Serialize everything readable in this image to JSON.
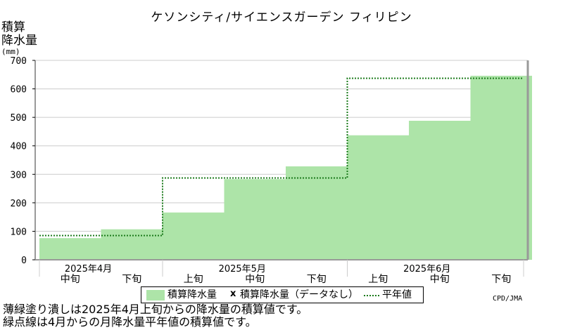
{
  "title": "ケソンシティ/サイエンスガーデン フィリピン",
  "ylabel_lines": [
    "積算",
    "降水量"
  ],
  "unit": "(mm)",
  "credit": "CPD/JMA",
  "legend": {
    "item1": "積算降水量",
    "xmark": "x",
    "item2": "積算降水量（データなし）",
    "item3": "平年値"
  },
  "notes": [
    "薄緑塗り潰しは2025年4月上旬からの降水量の積算値です。",
    "緑点線は4月からの月降水量平年値の積算値です。"
  ],
  "colors": {
    "fill": "#ade4a8",
    "normal_line": "#1a7a1a",
    "grid": "#cccccc",
    "axis": "#999999"
  },
  "chart_data": {
    "type": "area",
    "periods": [
      "中旬",
      "下旬",
      "上旬",
      "中旬",
      "下旬",
      "上旬",
      "中旬",
      "下旬"
    ],
    "months": [
      "2025年4月",
      "2025年5月",
      "2025年6月"
    ],
    "accumulated_precip": [
      76,
      107,
      166,
      283,
      328,
      437,
      488,
      646
    ],
    "normal_steps": [
      85,
      287,
      637
    ],
    "yticks": [
      0,
      100,
      200,
      300,
      400,
      500,
      600,
      700
    ],
    "ylim": [
      0,
      700
    ],
    "grid": true
  }
}
